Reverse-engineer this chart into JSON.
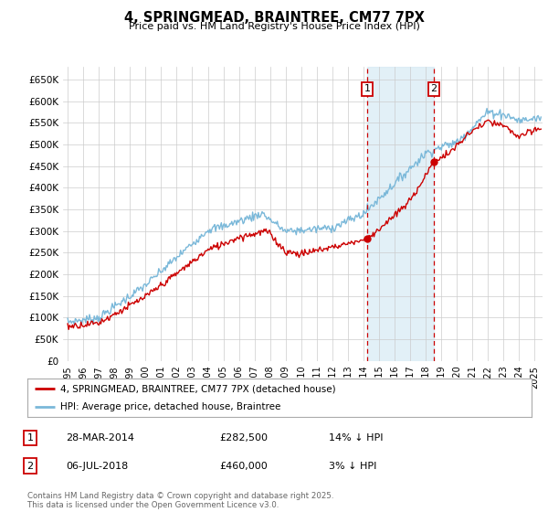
{
  "title": "4, SPRINGMEAD, BRAINTREE, CM77 7PX",
  "subtitle": "Price paid vs. HM Land Registry's House Price Index (HPI)",
  "ylabel_ticks": [
    "£0",
    "£50K",
    "£100K",
    "£150K",
    "£200K",
    "£250K",
    "£300K",
    "£350K",
    "£400K",
    "£450K",
    "£500K",
    "£550K",
    "£600K",
    "£650K"
  ],
  "ytick_values": [
    0,
    50000,
    100000,
    150000,
    200000,
    250000,
    300000,
    350000,
    400000,
    450000,
    500000,
    550000,
    600000,
    650000
  ],
  "ylim": [
    0,
    680000
  ],
  "xlim_start": 1994.7,
  "xlim_end": 2025.5,
  "xticks": [
    1995,
    1996,
    1997,
    1998,
    1999,
    2000,
    2001,
    2002,
    2003,
    2004,
    2005,
    2006,
    2007,
    2008,
    2009,
    2010,
    2011,
    2012,
    2013,
    2014,
    2015,
    2016,
    2017,
    2018,
    2019,
    2020,
    2021,
    2022,
    2023,
    2024,
    2025
  ],
  "hpi_color": "#7ab8d9",
  "price_color": "#cc0000",
  "transaction1_date": 2014.24,
  "transaction1_price": 282500,
  "transaction2_date": 2018.51,
  "transaction2_price": 460000,
  "vline_color": "#cc0000",
  "shade_color": "#d6eaf5",
  "legend_house": "4, SPRINGMEAD, BRAINTREE, CM77 7PX (detached house)",
  "legend_hpi": "HPI: Average price, detached house, Braintree",
  "table_row1": [
    "1",
    "28-MAR-2014",
    "£282,500",
    "14% ↓ HPI"
  ],
  "table_row2": [
    "2",
    "06-JUL-2018",
    "£460,000",
    "3% ↓ HPI"
  ],
  "footer": "Contains HM Land Registry data © Crown copyright and database right 2025.\nThis data is licensed under the Open Government Licence v3.0.",
  "bg_color": "#ffffff",
  "grid_color": "#cccccc"
}
